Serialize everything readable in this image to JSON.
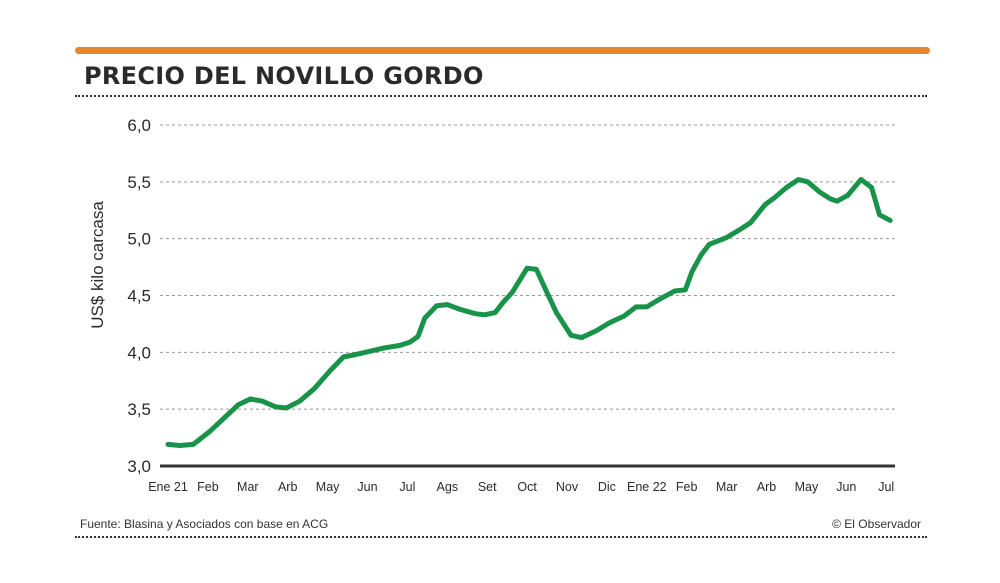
{
  "colors": {
    "accent_bar": "#e8842a",
    "line": "#19934a",
    "grid": "#999999",
    "text": "#2b2b2b"
  },
  "chart_data": {
    "type": "line",
    "title": "PRECIO DEL NOVILLO GORDO",
    "xlabel": "",
    "ylabel": "US$ kilo carcasa",
    "ylim": [
      3.0,
      6.0
    ],
    "yticks": [
      3.0,
      3.5,
      4.0,
      4.5,
      5.0,
      5.5,
      6.0
    ],
    "ytick_labels": [
      "3,0",
      "3,5",
      "4,0",
      "4,5",
      "5,0",
      "5,5",
      "6,0"
    ],
    "xtick_labels": [
      "Ene 21",
      "Feb",
      "Mar",
      "Arb",
      "May",
      "Jun",
      "Jul",
      "Ags",
      "Set",
      "Oct",
      "Nov",
      "Dic",
      "Ene 22",
      "Feb",
      "Mar",
      "Arb",
      "May",
      "Jun",
      "Jul"
    ],
    "xtick_dates": [
      "2021-01-01",
      "2021-02-01",
      "2021-03-01",
      "2021-04-01",
      "2021-05-01",
      "2021-06-01",
      "2021-07-01",
      "2021-08-01",
      "2021-09-01",
      "2021-10-01",
      "2021-11-01",
      "2021-12-01",
      "2022-01-01",
      "2022-02-01",
      "2022-03-01",
      "2022-04-01",
      "2022-05-01",
      "2022-06-01",
      "2022-07-01"
    ],
    "grid": "horizontal dashed",
    "series": [
      {
        "x": [
          "2021-01-01",
          "2021-01-10",
          "2021-01-20",
          "2021-02-02",
          "2021-02-13",
          "2021-02-24",
          "2021-03-03",
          "2021-03-12",
          "2021-03-22",
          "2021-03-30",
          "2021-04-10",
          "2021-04-21",
          "2021-05-03",
          "2021-05-13",
          "2021-05-22",
          "2021-06-03",
          "2021-06-14",
          "2021-06-25",
          "2021-07-03",
          "2021-07-09",
          "2021-07-14",
          "2021-07-23",
          "2021-07-31",
          "2021-08-10",
          "2021-08-22",
          "2021-08-29",
          "2021-09-07",
          "2021-09-13",
          "2021-09-20",
          "2021-10-01",
          "2021-10-08",
          "2021-10-15",
          "2021-10-23",
          "2021-11-04",
          "2021-11-12",
          "2021-11-23",
          "2021-12-03",
          "2021-12-14",
          "2021-12-23",
          "2022-01-01",
          "2022-01-11",
          "2022-01-22",
          "2022-01-30",
          "2022-02-05",
          "2022-02-12",
          "2022-02-18",
          "2022-03-01",
          "2022-03-11",
          "2022-03-19",
          "2022-03-30",
          "2022-04-07",
          "2022-04-16",
          "2022-04-25",
          "2022-05-02",
          "2022-05-11",
          "2022-05-19",
          "2022-05-24",
          "2022-06-02",
          "2022-06-12",
          "2022-06-20",
          "2022-06-26",
          "2022-07-04"
        ],
        "y": [
          3.19,
          3.18,
          3.19,
          3.3,
          3.42,
          3.54,
          3.59,
          3.57,
          3.52,
          3.51,
          3.57,
          3.68,
          3.84,
          3.96,
          3.98,
          4.01,
          4.04,
          4.06,
          4.09,
          4.14,
          4.3,
          4.41,
          4.42,
          4.38,
          4.34,
          4.33,
          4.35,
          4.44,
          4.53,
          4.74,
          4.73,
          4.55,
          4.35,
          4.15,
          4.13,
          4.19,
          4.26,
          4.32,
          4.4,
          4.4,
          4.47,
          4.54,
          4.55,
          4.71,
          4.86,
          4.95,
          5.01,
          5.08,
          5.14,
          5.3,
          5.36,
          5.45,
          5.52,
          5.5,
          5.41,
          5.35,
          5.33,
          5.38,
          5.52,
          5.45,
          5.21,
          5.16
        ]
      }
    ]
  },
  "footer": {
    "source": "Fuente: Blasina y Asociados con base en  ACG",
    "credit": "© El Observador"
  }
}
